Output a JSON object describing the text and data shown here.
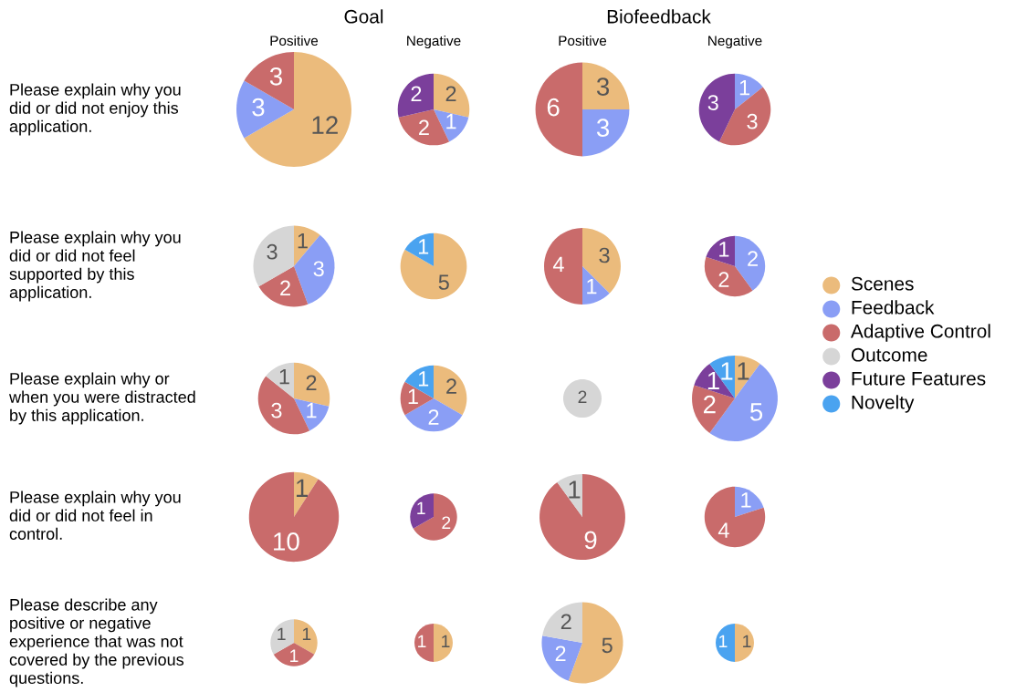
{
  "chart_data": [
    {
      "type": "pie",
      "title": "Goal",
      "subtitle": "Positive",
      "annotations": [
        "Please explain why you\ndid or did not enjoy this\napplication."
      ],
      "data_labels": true,
      "categories": [
        null,
        null,
        null
      ],
      "values": [
        12,
        3,
        3
      ],
      "colors": [
        "#ebbb7c",
        "#8a9ef5",
        "#c96b6b"
      ]
    },
    {
      "type": "pie",
      "subtitle": "Negative",
      "data_labels": true,
      "categories": [
        null,
        null,
        null,
        null
      ],
      "values": [
        2,
        1,
        2,
        2
      ],
      "colors": [
        "#ebbb7c",
        "#8a9ef5",
        "#c96b6b",
        "#7b3f9b"
      ]
    },
    {
      "type": "pie",
      "title": "Biofeedback",
      "subtitle": "Positive",
      "data_labels": true,
      "categories": [
        null,
        null,
        null
      ],
      "values": [
        3,
        3,
        6
      ],
      "colors": [
        "#ebbb7c",
        "#8a9ef5",
        "#c96b6b"
      ]
    },
    {
      "type": "pie",
      "subtitle": "Negative",
      "data_labels": true,
      "categories": [
        null,
        null,
        null
      ],
      "values": [
        1,
        3,
        3
      ],
      "colors": [
        "#8a9ef5",
        "#c96b6b",
        "#7b3f9b"
      ]
    },
    {
      "type": "pie",
      "annotations": [
        "Please explain why you\ndid or did not feel\nsupported by this\napplication."
      ],
      "data_labels": true,
      "categories": [
        null,
        null,
        null,
        null
      ],
      "values": [
        1,
        3,
        2,
        3
      ],
      "colors": [
        "#ebbb7c",
        "#8a9ef5",
        "#c96b6b",
        "#d6d6d6"
      ]
    },
    {
      "type": "pie",
      "data_labels": true,
      "categories": [
        null,
        null
      ],
      "values": [
        5,
        1
      ],
      "colors": [
        "#ebbb7c",
        "#4aa3f0"
      ]
    },
    {
      "type": "pie",
      "data_labels": true,
      "categories": [
        null,
        null,
        null
      ],
      "values": [
        3,
        1,
        4
      ],
      "colors": [
        "#ebbb7c",
        "#8a9ef5",
        "#c96b6b"
      ]
    },
    {
      "type": "pie",
      "data_labels": true,
      "categories": [
        null,
        null,
        null
      ],
      "values": [
        2,
        2,
        1
      ],
      "colors": [
        "#8a9ef5",
        "#c96b6b",
        "#7b3f9b"
      ]
    },
    {
      "type": "pie",
      "annotations": [
        "Please explain why or\nwhen you were distracted\nby this application."
      ],
      "data_labels": true,
      "categories": [
        null,
        null,
        null,
        null
      ],
      "values": [
        2,
        1,
        3,
        1
      ],
      "colors": [
        "#ebbb7c",
        "#8a9ef5",
        "#c96b6b",
        "#d6d6d6"
      ]
    },
    {
      "type": "pie",
      "data_labels": true,
      "categories": [
        null,
        null,
        null,
        null
      ],
      "values": [
        2,
        2,
        1,
        1
      ],
      "colors": [
        "#ebbb7c",
        "#8a9ef5",
        "#c96b6b",
        "#4aa3f0"
      ]
    },
    {
      "type": "pie",
      "data_labels": true,
      "categories": [
        null
      ],
      "values": [
        2
      ],
      "colors": [
        "#d6d6d6"
      ]
    },
    {
      "type": "pie",
      "data_labels": true,
      "categories": [
        null,
        null,
        null,
        null,
        null
      ],
      "values": [
        1,
        5,
        2,
        1,
        1
      ],
      "colors": [
        "#ebbb7c",
        "#8a9ef5",
        "#c96b6b",
        "#7b3f9b",
        "#4aa3f0"
      ]
    },
    {
      "type": "pie",
      "annotations": [
        "Please explain why you\ndid or did not feel in\ncontrol."
      ],
      "data_labels": true,
      "categories": [
        null,
        null
      ],
      "values": [
        1,
        10
      ],
      "colors": [
        "#ebbb7c",
        "#c96b6b"
      ]
    },
    {
      "type": "pie",
      "data_labels": true,
      "categories": [
        null,
        null
      ],
      "values": [
        2,
        1
      ],
      "colors": [
        "#c96b6b",
        "#7b3f9b"
      ]
    },
    {
      "type": "pie",
      "data_labels": true,
      "categories": [
        null,
        null
      ],
      "values": [
        9,
        1
      ],
      "colors": [
        "#c96b6b",
        "#d6d6d6"
      ]
    },
    {
      "type": "pie",
      "data_labels": true,
      "categories": [
        null,
        null
      ],
      "values": [
        1,
        4
      ],
      "colors": [
        "#8a9ef5",
        "#c96b6b"
      ]
    },
    {
      "type": "pie",
      "annotations": [
        "Please describe any\npositive or negative\nexperience that was not\ncovered by the previous\nquestions."
      ],
      "data_labels": true,
      "categories": [
        null,
        null,
        null
      ],
      "values": [
        1,
        1,
        1
      ],
      "colors": [
        "#ebbb7c",
        "#c96b6b",
        "#d6d6d6"
      ]
    },
    {
      "type": "pie",
      "data_labels": true,
      "categories": [
        null,
        null
      ],
      "values": [
        1,
        1
      ],
      "colors": [
        "#ebbb7c",
        "#c96b6b"
      ]
    },
    {
      "type": "pie",
      "data_labels": true,
      "categories": [
        null,
        null,
        null
      ],
      "values": [
        5,
        2,
        2
      ],
      "colors": [
        "#ebbb7c",
        "#8a9ef5",
        "#d6d6d6"
      ]
    },
    {
      "type": "pie",
      "data_labels": true,
      "categories": [
        null,
        null
      ],
      "values": [
        1,
        1
      ],
      "colors": [
        "#ebbb7c",
        "#4aa3f0"
      ]
    },
    {
      "type": "other",
      "categories": [
        "Scenes",
        "Feedback",
        "Adaptive Control",
        "Outcome",
        "Future Features",
        "Novelty"
      ],
      "colors": [
        "#ebbb7c",
        "#8a9ef5",
        "#c96b6b",
        "#d6d6d6",
        "#7b3f9b",
        "#4aa3f0"
      ]
    }
  ]
}
